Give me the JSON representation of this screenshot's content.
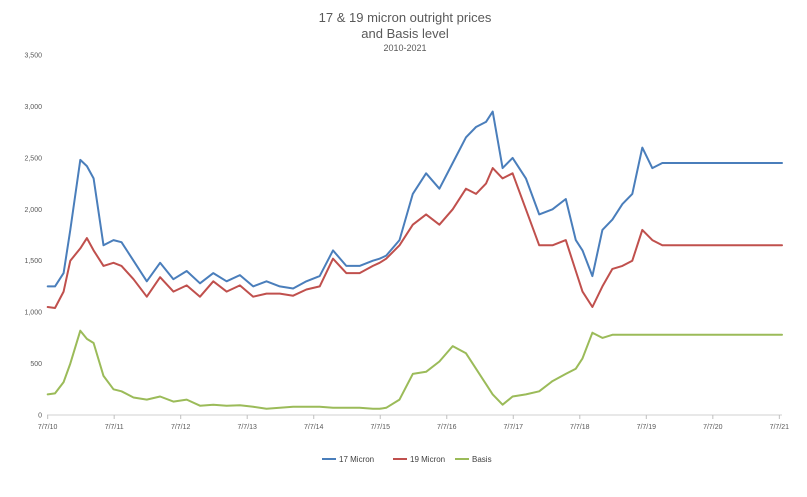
{
  "chart_data": {
    "type": "line",
    "title_line1": "17 & 19 micron outright prices",
    "title_line2": "and Basis level",
    "subtitle": "2010-2021",
    "xlabel": "",
    "ylabel": "",
    "ylim": [
      0,
      3500
    ],
    "xlim": [
      2010.5,
      2021.55
    ],
    "y_ticks": [
      0,
      500,
      1000,
      1500,
      2000,
      2500,
      3000,
      3500
    ],
    "y_tick_labels": [
      "0",
      "500",
      "1,000",
      "1,500",
      "2,000",
      "2,500",
      "3,000",
      "3,500"
    ],
    "x_ticks": [
      2010.51,
      2011.51,
      2012.51,
      2013.51,
      2014.51,
      2015.51,
      2016.51,
      2017.51,
      2018.51,
      2019.51,
      2020.51,
      2021.51
    ],
    "x_tick_labels": [
      "7/7/10",
      "7/7/11",
      "7/7/12",
      "7/7/13",
      "7/7/14",
      "7/7/15",
      "7/7/16",
      "7/7/17",
      "7/7/18",
      "7/7/19",
      "7/7/20",
      "7/7/21"
    ],
    "grid": false,
    "legend_position": "bottom",
    "x": [
      2010.51,
      2010.62,
      2010.75,
      2010.85,
      2011.0,
      2011.1,
      2011.2,
      2011.35,
      2011.5,
      2011.62,
      2011.8,
      2012.0,
      2012.2,
      2012.4,
      2012.6,
      2012.8,
      2013.0,
      2013.2,
      2013.4,
      2013.6,
      2013.8,
      2014.0,
      2014.2,
      2014.4,
      2014.6,
      2014.8,
      2015.0,
      2015.2,
      2015.4,
      2015.5,
      2015.6,
      2015.8,
      2016.0,
      2016.2,
      2016.4,
      2016.6,
      2016.8,
      2016.95,
      2017.1,
      2017.2,
      2017.35,
      2017.5,
      2017.7,
      2017.9,
      2018.1,
      2018.3,
      2018.45,
      2018.55,
      2018.7,
      2018.85,
      2019.0,
      2019.15,
      2019.3,
      2019.45,
      2019.6,
      2019.75,
      2019.9,
      2020.05,
      2020.2,
      2020.35,
      2020.5,
      2020.6,
      2020.75,
      2020.9,
      2021.05,
      2021.2,
      2021.35,
      2021.45,
      2021.55
    ],
    "series": [
      {
        "name": "17 Micron",
        "color": "#4a7ebb",
        "values": [
          1250,
          1250,
          1380,
          1800,
          2480,
          2420,
          2300,
          1650,
          1700,
          1680,
          1500,
          1300,
          1480,
          1320,
          1400,
          1280,
          1380,
          1300,
          1360,
          1250,
          1300,
          1250,
          1230,
          1300,
          1350,
          1600,
          1450,
          1450,
          1500,
          1520,
          1550,
          1700,
          2150,
          2350,
          2200,
          2450,
          2700,
          2800,
          2850,
          2950,
          2400,
          2500,
          2300,
          1950,
          2000,
          2100,
          1700,
          1600,
          1350,
          1800,
          1900,
          2050,
          2150,
          2600,
          2400,
          2450,
          2450,
          2450,
          2450,
          2450,
          2450,
          2450,
          2450,
          2450,
          2450,
          2450,
          2450,
          2450,
          2450
        ]
      },
      {
        "name": "19 Micron",
        "color": "#c0504d",
        "values": [
          1050,
          1040,
          1200,
          1500,
          1620,
          1720,
          1600,
          1450,
          1480,
          1450,
          1320,
          1150,
          1340,
          1200,
          1260,
          1150,
          1300,
          1200,
          1260,
          1150,
          1180,
          1180,
          1160,
          1220,
          1250,
          1520,
          1380,
          1380,
          1450,
          1480,
          1520,
          1650,
          1850,
          1950,
          1850,
          2000,
          2200,
          2150,
          2250,
          2400,
          2300,
          2350,
          2000,
          1650,
          1650,
          1700,
          1400,
          1200,
          1050,
          1250,
          1420,
          1450,
          1500,
          1800,
          1700,
          1650,
          1650,
          1650,
          1650,
          1650,
          1650,
          1650,
          1650,
          1650,
          1650,
          1650,
          1650,
          1650,
          1650
        ]
      },
      {
        "name": "Basis",
        "color": "#9bbb59",
        "values": [
          200,
          210,
          320,
          500,
          820,
          740,
          700,
          380,
          250,
          230,
          170,
          150,
          180,
          130,
          150,
          90,
          100,
          90,
          95,
          80,
          60,
          70,
          80,
          80,
          80,
          70,
          70,
          70,
          60,
          60,
          70,
          150,
          400,
          420,
          520,
          670,
          600,
          450,
          300,
          200,
          100,
          180,
          200,
          230,
          330,
          400,
          450,
          550,
          800,
          750,
          780,
          780,
          780,
          780,
          780,
          780,
          780,
          780,
          780,
          780,
          780,
          780,
          780,
          780,
          780,
          780,
          780,
          780,
          780
        ]
      }
    ]
  }
}
